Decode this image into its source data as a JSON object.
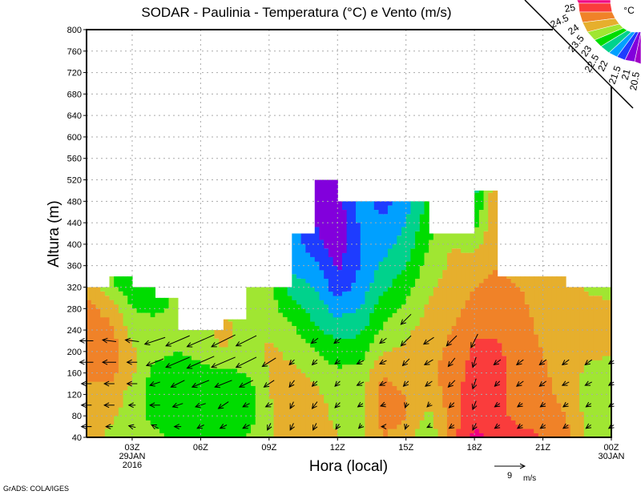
{
  "chart_data": {
    "type": "heatmap",
    "title": "SODAR - Paulinia - Temperatura (°C) e Vento (m/s)",
    "xlabel": "Hora (local)",
    "ylabel": "Altura (m)",
    "xlim": [
      1,
      24
    ],
    "ylim": [
      40,
      800
    ],
    "grid": true,
    "y_ticks": [
      40,
      80,
      120,
      160,
      200,
      240,
      280,
      320,
      360,
      400,
      440,
      480,
      520,
      560,
      600,
      640,
      680,
      720,
      760,
      800
    ],
    "x_ticks": [
      {
        "hour": 3,
        "label": "03Z",
        "sub1": "29JAN",
        "sub2": "2016"
      },
      {
        "hour": 6,
        "label": "06Z"
      },
      {
        "hour": 9,
        "label": "09Z"
      },
      {
        "hour": 12,
        "label": "12Z"
      },
      {
        "hour": 15,
        "label": "15Z"
      },
      {
        "hour": 18,
        "label": "18Z"
      },
      {
        "hour": 21,
        "label": "21Z"
      },
      {
        "hour": 24,
        "label": "00Z",
        "sub1": "30JAN"
      }
    ],
    "temperature": {
      "units": "°C",
      "hours": [
        1,
        2,
        3,
        4,
        5,
        6,
        7,
        8,
        9,
        10,
        11,
        12,
        13,
        14,
        15,
        16,
        17,
        18,
        19,
        20,
        21,
        22,
        23,
        24
      ],
      "heights": [
        40,
        80,
        120,
        160,
        200,
        240,
        280,
        320,
        360,
        400,
        440,
        480,
        520
      ],
      "values": [
        [
          23.8,
          23.8,
          23.8,
          24.1,
          24.2,
          24.1,
          24.2,
          23.8
        ],
        [
          23.4,
          23.6,
          23.8,
          24.2,
          24.3,
          24.2,
          23.8,
          23.2,
          23.0
        ],
        [
          23.4,
          23.3,
          23.3,
          23.6,
          23.6,
          23.3,
          23.0,
          22.6,
          22.3
        ],
        [
          23.2,
          22.8,
          22.7,
          22.8,
          23.2,
          23.4,
          22.8,
          22.6
        ],
        [
          22.8,
          22.6,
          22.6,
          22.7,
          23.0,
          23.2,
          23.2
        ],
        [
          22.7,
          22.6,
          22.7,
          22.8,
          23.2,
          23.4,
          23.4
        ],
        [
          22.8,
          22.7,
          22.8,
          22.9,
          23.5,
          23.6,
          23.5
        ],
        [
          23.0,
          22.7,
          22.6,
          23.0,
          23.3,
          23.4,
          23.3,
          23.2
        ],
        [
          23.4,
          23.4,
          23.5,
          23.5,
          23.6,
          23.4,
          23.2,
          23.2,
          23.0
        ],
        [
          23.8,
          23.8,
          23.7,
          23.6,
          23.4,
          23.1,
          22.7,
          22.3,
          21.8,
          21.8,
          21.8
        ],
        [
          23.8,
          23.7,
          23.6,
          23.4,
          23.0,
          22.6,
          22.3,
          22.0,
          21.7,
          21.2,
          21.0,
          20.7,
          20.6
        ],
        [
          23.5,
          23.4,
          23.3,
          23.1,
          22.7,
          22.3,
          21.8,
          21.2,
          20.9,
          20.7,
          20.6,
          20.8,
          20.9
        ],
        [
          23.4,
          23.3,
          23.3,
          23.2,
          22.8,
          22.4,
          22.0,
          21.7,
          21.5,
          21.5,
          21.6,
          21.7
        ],
        [
          24.0,
          24.2,
          24.2,
          24.0,
          23.5,
          23.1,
          22.8,
          22.4,
          22.1,
          21.8,
          21.6,
          21.3
        ],
        [
          23.8,
          24.0,
          24.0,
          23.7,
          23.6,
          23.4,
          23.1,
          22.8,
          22.5,
          22.2,
          22.0,
          21.8
        ],
        [
          23.0,
          23.4,
          23.6,
          23.9,
          23.8,
          23.7,
          23.6,
          23.4,
          23.2,
          23.0,
          22.8,
          22.6
        ],
        [
          24.3,
          24.2,
          24.3,
          24.2,
          24.1,
          24.0,
          23.8,
          23.7,
          23.6,
          23.5,
          23.4
        ],
        [
          25.2,
          24.8,
          24.8,
          24.7,
          24.6,
          24.4,
          24.2,
          24.0,
          23.8,
          23.3,
          22.8,
          22.4,
          22.2
        ],
        [
          24.8,
          24.7,
          24.7,
          24.7,
          24.6,
          24.4,
          24.2,
          24.1,
          24.0
        ],
        [
          24.7,
          24.3,
          24.2,
          24.2,
          24.2,
          24.2,
          24.1,
          24.0,
          23.8
        ],
        [
          24.5,
          24.3,
          24.2,
          24.1,
          24.0,
          23.9,
          23.8,
          23.8,
          23.5
        ],
        [
          24.2,
          24.0,
          23.8,
          23.7,
          23.7,
          23.7,
          23.8,
          23.9
        ],
        [
          23.4,
          23.3,
          23.3,
          23.4,
          23.6,
          23.8,
          23.7,
          23.4
        ],
        [
          23.2,
          23.1,
          23.1,
          23.2,
          23.6,
          23.8,
          23.6,
          23.3
        ]
      ],
      "data_top_per_hour_interval": [
        320,
        340,
        320,
        300,
        240,
        240,
        260,
        320,
        320,
        420,
        520,
        480,
        480,
        480,
        480,
        420,
        420,
        500,
        340,
        340,
        340,
        320,
        320
      ],
      "levels": [
        20.5,
        21,
        21.5,
        22,
        22.5,
        23,
        23.5,
        24,
        24.5,
        25
      ],
      "level_labels": [
        "20.5",
        "21",
        "21.5",
        "22",
        "22.5",
        "23",
        "23.5",
        "24",
        "24.5",
        "25"
      ],
      "colors": [
        "#a000c8",
        "#8200dc",
        "#1e3cff",
        "#00a0ff",
        "#00d28c",
        "#00dc00",
        "#a0e632",
        "#e6af2d",
        "#f08228",
        "#fa3c3c",
        "#f00082"
      ],
      "legend_unit": "°C",
      "legend_placement": "top-right"
    },
    "wind": {
      "units": "m/s",
      "heights": [
        60,
        100,
        140,
        180,
        220,
        260
      ],
      "vectors_uv": [
        [
          [
            -3,
            0
          ],
          [
            -3,
            0
          ],
          [
            -3,
            0
          ],
          [
            -4,
            0
          ],
          [
            -4,
            0
          ],
          null
        ],
        [
          [
            -2,
            0
          ],
          [
            -3,
            0
          ],
          [
            -3,
            0
          ],
          [
            -4,
            0
          ],
          [
            -4,
            0.5
          ],
          null
        ],
        [
          [
            -2,
            0.5
          ],
          [
            -2,
            0
          ],
          [
            -3,
            0
          ],
          [
            -3,
            0
          ],
          [
            -4,
            0.5
          ],
          null
        ],
        [
          [
            -2,
            1
          ],
          [
            -3,
            0
          ],
          [
            -3,
            -1
          ],
          [
            -5,
            -2
          ],
          [
            -6,
            -2
          ],
          null
        ],
        [
          [
            -2,
            0
          ],
          [
            -3,
            -1
          ],
          [
            -4,
            -2
          ],
          [
            -7,
            -3
          ],
          [
            -7,
            -3
          ],
          null
        ],
        [
          [
            -2,
            -1
          ],
          [
            -3,
            -1
          ],
          [
            -5,
            -2
          ],
          [
            -8,
            -3.5
          ],
          [
            -8,
            -3.5
          ],
          null
        ],
        [
          [
            -2,
            -1
          ],
          [
            -3,
            -2
          ],
          [
            -5,
            -2
          ],
          [
            -7,
            -3
          ],
          [
            -7,
            -3.5
          ],
          null
        ],
        [
          [
            -2,
            -1
          ],
          [
            -2,
            -1
          ],
          [
            -4,
            -2
          ],
          [
            -6,
            -3
          ],
          [
            -6,
            -3
          ],
          null
        ],
        [
          [
            -1,
            -2
          ],
          [
            -2,
            -1
          ],
          [
            -3,
            -2
          ],
          [
            -4,
            -2.5
          ],
          null,
          null
        ],
        [
          [
            -1,
            -2
          ],
          [
            -1,
            -2
          ],
          [
            -1.5,
            -2
          ],
          [
            -1.5,
            -1.5
          ],
          null,
          null
        ],
        [
          [
            -1,
            -2
          ],
          [
            -1.5,
            -2
          ],
          [
            -1.5,
            -1.5
          ],
          [
            -1.5,
            -1.5
          ],
          [
            -2,
            -1.5
          ],
          null
        ],
        [
          [
            -1,
            -1.5
          ],
          [
            -1.5,
            -1.5
          ],
          [
            -1.5,
            -1.5
          ],
          [
            -1.5,
            -1
          ],
          [
            -2,
            -1.5
          ],
          null
        ],
        [
          [
            -1,
            -1
          ],
          [
            -1.5,
            -1
          ],
          [
            -2,
            -1
          ],
          [
            -2,
            -1
          ],
          null,
          null
        ],
        [
          [
            -1,
            0
          ],
          [
            -1.5,
            -0.5
          ],
          [
            -2,
            -1
          ],
          [
            -2,
            -1
          ],
          [
            -2,
            -1.5
          ],
          null
        ],
        [
          [
            -0.5,
            -1.5
          ],
          [
            -0.5,
            -1.5
          ],
          [
            -1.5,
            -1.5
          ],
          [
            -2,
            -2
          ],
          [
            -3,
            -3
          ],
          [
            -3,
            -3
          ]
        ],
        [
          [
            -1,
            -0.5
          ],
          [
            -1,
            -1
          ],
          [
            -2,
            -1.5
          ],
          [
            -2.5,
            -1.5
          ],
          [
            -3,
            -2
          ],
          null
        ],
        [
          [
            -1.5,
            -1
          ],
          [
            -1.5,
            -1.5
          ],
          [
            -2,
            -2
          ],
          [
            -2,
            -2.5
          ],
          [
            -3,
            -3
          ],
          null
        ],
        [
          [
            -1,
            -2
          ],
          [
            -1,
            -2.5
          ],
          [
            -1,
            -3
          ],
          [
            -1,
            -3
          ],
          [
            -2,
            -4
          ],
          null
        ],
        [
          [
            -1.5,
            -1
          ],
          [
            -1.5,
            -1
          ],
          [
            -1.5,
            -1.5
          ],
          [
            -2,
            -1.5
          ],
          null,
          null
        ],
        [
          [
            -1.5,
            -1
          ],
          [
            -1.5,
            -1
          ],
          [
            -2,
            -1.5
          ],
          [
            -2,
            -1.5
          ],
          null,
          null
        ],
        [
          [
            -1.5,
            -1
          ],
          [
            -1.5,
            -1
          ],
          [
            -2,
            -1.5
          ],
          [
            -2,
            -1.5
          ],
          null,
          null
        ],
        [
          [
            -1.5,
            -1
          ],
          [
            -1.5,
            -1
          ],
          [
            -2,
            -1
          ],
          [
            -2,
            -1.5
          ],
          null,
          null
        ],
        [
          [
            -1.5,
            -1
          ],
          [
            -1.5,
            -1
          ],
          [
            -2,
            -1
          ],
          [
            -2,
            -1.5
          ],
          null,
          null
        ],
        [
          [
            -1.5,
            -1
          ],
          [
            -1.5,
            -1
          ],
          [
            -1.5,
            -1
          ],
          [
            -1.5,
            -1
          ],
          null,
          null
        ]
      ],
      "reference_vector": {
        "value": "9",
        "unit": "m/s",
        "speed": 9
      }
    },
    "credit": "GrADS: COLA/IGES"
  }
}
